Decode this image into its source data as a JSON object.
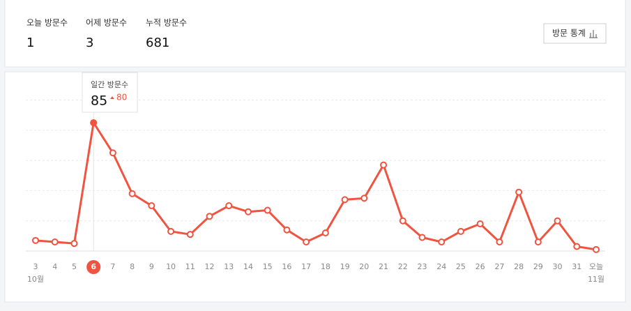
{
  "stats": [
    {
      "label": "오늘 방문수",
      "value": 1
    },
    {
      "label": "어제 방문수",
      "value": 3
    },
    {
      "label": "누적 방문수",
      "value": 681
    }
  ],
  "button": "방문 통계",
  "chart_data": {
    "type": "line",
    "categories": [
      "3",
      "4",
      "5",
      "6",
      "7",
      "8",
      "9",
      "10",
      "11",
      "12",
      "13",
      "14",
      "15",
      "16",
      "17",
      "18",
      "19",
      "20",
      "21",
      "22",
      "23",
      "24",
      "25",
      "26",
      "27",
      "28",
      "29",
      "30",
      "31",
      "오늘"
    ],
    "month_labels": [
      "10월",
      null,
      null,
      null,
      null,
      null,
      null,
      null,
      null,
      null,
      null,
      null,
      null,
      null,
      null,
      null,
      null,
      null,
      null,
      null,
      null,
      null,
      null,
      null,
      null,
      null,
      null,
      null,
      null,
      "11월"
    ],
    "series": [
      {
        "name": "일간 방문수",
        "color": "#f0533f",
        "values": [
          7,
          6,
          5,
          85,
          65,
          38,
          30,
          13,
          11,
          23,
          30,
          26,
          27,
          14,
          6,
          12,
          34,
          35,
          57,
          20,
          9,
          6,
          13,
          18,
          6,
          39,
          6,
          20,
          3,
          1
        ]
      }
    ],
    "ylim": [
      0,
      100
    ],
    "yticks": [
      0,
      20,
      40,
      60,
      80,
      100
    ],
    "grid": true,
    "highlight_index": 3,
    "tooltip": {
      "title": "일간 방문수",
      "change": 80
    }
  }
}
